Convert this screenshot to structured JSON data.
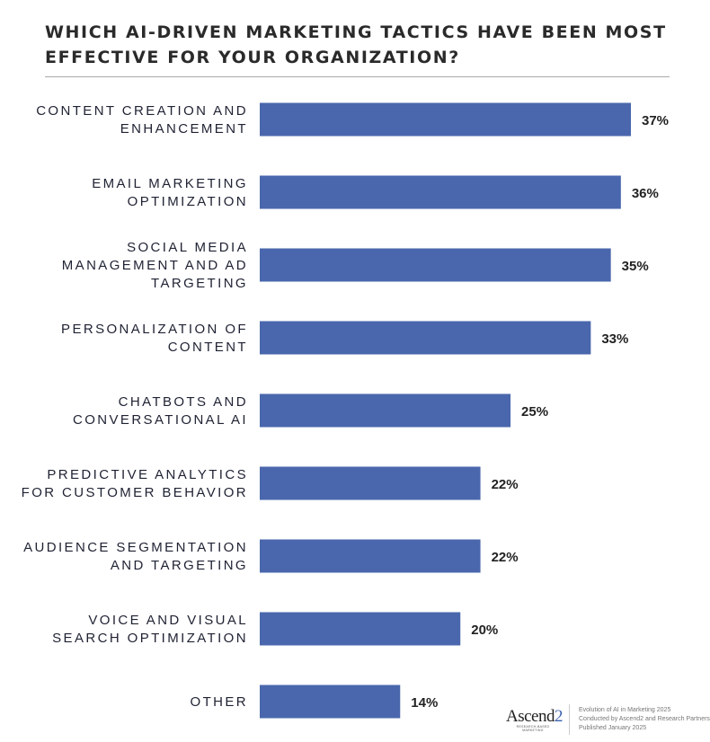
{
  "title": "WHICH AI-DRIVEN MARKETING TACTICS HAVE BEEN MOST EFFECTIVE FOR YOUR ORGANIZATION?",
  "chart_data": {
    "type": "bar",
    "orientation": "horizontal",
    "categories": [
      [
        "CONTENT CREATION AND",
        "ENHANCEMENT"
      ],
      [
        "EMAIL MARKETING",
        "OPTIMIZATION"
      ],
      [
        "SOCIAL MEDIA",
        "MANAGEMENT AND AD",
        "TARGETING"
      ],
      [
        "PERSONALIZATION OF",
        "CONTENT"
      ],
      [
        "CHATBOTS AND",
        "CONVERSATIONAL AI"
      ],
      [
        "PREDICTIVE ANALYTICS",
        "FOR CUSTOMER BEHAVIOR"
      ],
      [
        "AUDIENCE SEGMENTATION",
        "AND TARGETING"
      ],
      [
        "VOICE AND VISUAL",
        "SEARCH OPTIMIZATION"
      ],
      [
        "OTHER"
      ]
    ],
    "values": [
      37,
      36,
      35,
      33,
      25,
      22,
      22,
      20,
      14
    ],
    "value_labels": [
      "37%",
      "36%",
      "35%",
      "33%",
      "25%",
      "22%",
      "22%",
      "20%",
      "14%"
    ],
    "bar_color": "#4a67ad",
    "grid": false,
    "xlim": [
      0,
      37
    ]
  },
  "footer": {
    "logo_text": "Ascend",
    "logo_number": "2",
    "logo_tagline": "RESEARCH-BASED MARKETING",
    "lines": [
      "Evolution of AI in Marketing 2025",
      "Conducted by Ascend2 and Research Partners",
      "Published January 2025"
    ]
  }
}
